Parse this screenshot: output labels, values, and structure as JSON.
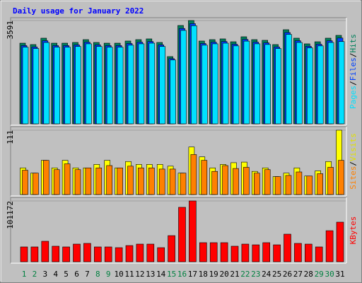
{
  "chart_data": [
    {
      "type": "bar",
      "title": "Daily usage for January 2022",
      "ylim": [
        0,
        3591
      ],
      "yticks": [
        3591
      ],
      "legend_separator": "/",
      "series": [
        {
          "name": "Pages",
          "color": "#00e0ff",
          "values": [
            2664,
            2617,
            2828,
            2664,
            2664,
            2688,
            2781,
            2688,
            2664,
            2664,
            2734,
            2781,
            2804,
            2688,
            2220,
            3248,
            3411,
            2734,
            2781,
            2804,
            2710,
            2875,
            2781,
            2758,
            2617,
            3108,
            2828,
            2641,
            2710,
            2828,
            2860
          ]
        },
        {
          "name": "Files",
          "color": "#0040ff",
          "values": [
            2720,
            2672,
            2888,
            2720,
            2720,
            2744,
            2839,
            2744,
            2720,
            2720,
            2792,
            2839,
            2863,
            2744,
            2267,
            3316,
            3483,
            2792,
            2839,
            2863,
            2767,
            2935,
            2839,
            2816,
            2672,
            3174,
            2888,
            2697,
            2767,
            2888,
            2983
          ]
        },
        {
          "name": "Hits",
          "color": "#00805c",
          "values": [
            2804,
            2755,
            2977,
            2804,
            2804,
            2829,
            2927,
            2829,
            2804,
            2804,
            2878,
            2927,
            2952,
            2829,
            2337,
            3419,
            3591,
            2878,
            2927,
            2952,
            2853,
            3026,
            2927,
            2903,
            2755,
            3272,
            2977,
            2780,
            2853,
            2977,
            3075
          ]
        }
      ]
    },
    {
      "type": "bar",
      "ylim": [
        0,
        111
      ],
      "yticks": [
        111
      ],
      "legend_separator": "/",
      "series": [
        {
          "name": "Sites",
          "color": "#ff8000",
          "values": [
            42,
            37,
            59,
            43,
            53,
            43,
            46,
            46,
            50,
            46,
            49,
            46,
            46,
            44,
            44,
            37,
            69,
            59,
            40,
            50,
            45,
            47,
            37,
            43,
            31,
            33,
            39,
            32,
            36,
            47,
            59
          ]
        },
        {
          "name": "Visits",
          "color": "#ffff00",
          "values": [
            46,
            37,
            59,
            46,
            59,
            46,
            46,
            52,
            59,
            46,
            57,
            52,
            52,
            52,
            49,
            37,
            82,
            65,
            46,
            52,
            55,
            56,
            40,
            46,
            31,
            37,
            46,
            32,
            41,
            57,
            111
          ]
        }
      ]
    },
    {
      "type": "bar",
      "ylim": [
        0,
        101172
      ],
      "yticks": [
        101172
      ],
      "categories": [
        "1",
        "2",
        "3",
        "4",
        "5",
        "6",
        "7",
        "8",
        "9",
        "10",
        "11",
        "12",
        "13",
        "14",
        "15",
        "16",
        "17",
        "18",
        "19",
        "20",
        "21",
        "22",
        "23",
        "24",
        "25",
        "26",
        "27",
        "28",
        "29",
        "30",
        "31"
      ],
      "highlight_categories": [
        0,
        1,
        7,
        8,
        14,
        15,
        21,
        22,
        28,
        29
      ],
      "highlight_color": "#008040",
      "series": [
        {
          "name": "KBytes",
          "color": "#ff0000",
          "values": [
            24700,
            24700,
            34100,
            25900,
            24700,
            29400,
            30600,
            24700,
            24700,
            23500,
            27000,
            29400,
            29400,
            23500,
            43500,
            90600,
            101172,
            31800,
            31800,
            31800,
            25900,
            29400,
            28200,
            31800,
            28200,
            45900,
            30600,
            29400,
            24700,
            51700,
            65900
          ]
        }
      ]
    }
  ]
}
